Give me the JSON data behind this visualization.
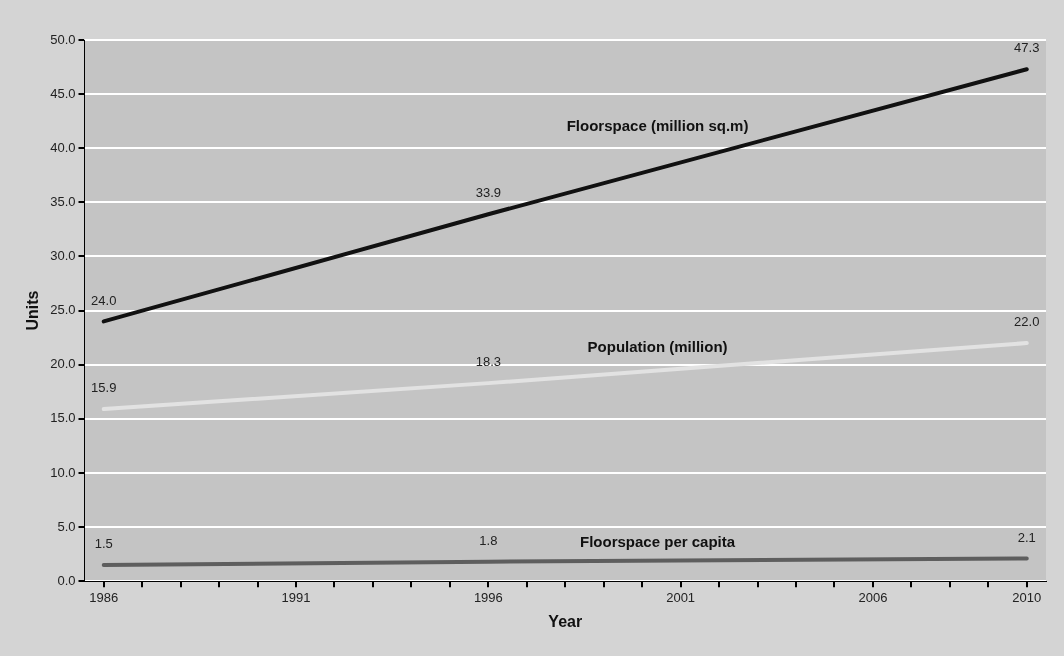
{
  "chart_data": {
    "type": "line",
    "xlabel": "Year",
    "ylabel": "Units",
    "xlim": [
      1985.5,
      2010.5
    ],
    "xticks": [
      1986,
      {
        "value": 1987,
        "label": null
      },
      {
        "value": 1988,
        "label": null
      },
      {
        "value": 1989,
        "label": null
      },
      {
        "value": 1990,
        "label": null
      },
      1991,
      {
        "value": 1992,
        "label": null
      },
      {
        "value": 1993,
        "label": null
      },
      {
        "value": 1994,
        "label": null
      },
      {
        "value": 1995,
        "label": null
      },
      1996,
      {
        "value": 1997,
        "label": null
      },
      {
        "value": 1998,
        "label": null
      },
      {
        "value": 1999,
        "label": null
      },
      {
        "value": 2000,
        "label": null
      },
      2001,
      {
        "value": 2002,
        "label": null
      },
      {
        "value": 2003,
        "label": null
      },
      {
        "value": 2004,
        "label": null
      },
      {
        "value": 2005,
        "label": null
      },
      2006,
      {
        "value": 2007,
        "label": null
      },
      {
        "value": 2008,
        "label": null
      },
      {
        "value": 2009,
        "label": null
      },
      2010
    ],
    "ylim": [
      0,
      50
    ],
    "yticks": [
      {
        "value": 0,
        "label": "0.0"
      },
      {
        "value": 5,
        "label": "5.0"
      },
      {
        "value": 10,
        "label": "10.0"
      },
      {
        "value": 15,
        "label": "15.0"
      },
      {
        "value": 20,
        "label": "20.0"
      },
      {
        "value": 25,
        "label": "25.0"
      },
      {
        "value": 30,
        "label": "30.0"
      },
      {
        "value": 35,
        "label": "35.0"
      },
      {
        "value": 40,
        "label": "40.0"
      },
      {
        "value": 45,
        "label": "45.0"
      },
      {
        "value": 50,
        "label": "50.0"
      }
    ],
    "x": [
      1986,
      1996,
      2010
    ],
    "series": [
      {
        "name": "Floorspace (million sq.m)",
        "color": "#111111",
        "values": [
          24.0,
          33.9,
          47.3
        ],
        "value_labels": [
          "24.0",
          "33.9",
          "47.3"
        ]
      },
      {
        "name": "Population (million)",
        "color": "#e2e2e2",
        "values": [
          15.9,
          18.3,
          22.0
        ],
        "value_labels": [
          "15.9",
          "18.3",
          "22.0"
        ]
      },
      {
        "name": "Floorspace per capita",
        "color": "#5e5e5e",
        "values": [
          1.5,
          1.8,
          2.1
        ],
        "value_labels": [
          "1.5",
          "1.8",
          "2.1"
        ]
      }
    ],
    "grid": "y",
    "legend": false,
    "marker": "none",
    "line_style": "solid"
  }
}
